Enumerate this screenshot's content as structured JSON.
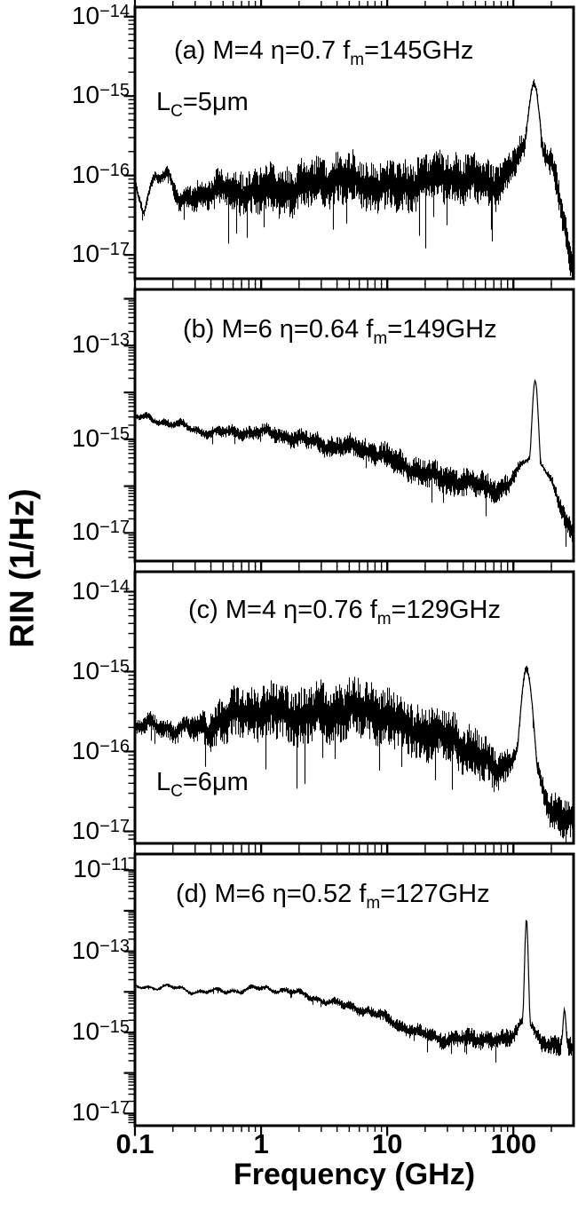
{
  "figure": {
    "ylabel": "RIN (1/Hz)",
    "xlabel": "Frequency (GHz)",
    "xlim_GHz": [
      0.1,
      300
    ],
    "xtick_values_GHz": [
      0.1,
      1,
      10,
      100
    ],
    "xtick_labels": [
      "0.1",
      "1",
      "10",
      "100"
    ],
    "axis_color": "#000000",
    "trace_color": "#000000",
    "background_color": "#ffffff"
  },
  "chart_data": [
    {
      "id": "a",
      "type": "line",
      "label": "(a) M=4 η=0.7 fm=145GHz",
      "label_segments": [
        {
          "t": "(a) M=4 "
        },
        {
          "t": "η=0.7 "
        },
        {
          "t": "f"
        },
        {
          "t": "m",
          "sub": true
        },
        {
          "t": "=145GHz"
        }
      ],
      "extra_label": "LC=5μm",
      "extra_label_segments": [
        {
          "t": "L"
        },
        {
          "t": "C",
          "sub": true
        },
        {
          "t": "=5μm"
        }
      ],
      "M": 4,
      "eta": 0.7,
      "f_m_GHz": 145,
      "L_C_um": 5,
      "ylim_log10": [
        -17.3,
        -13.88
      ],
      "ytick_label_exponents": [
        -14,
        -15,
        -16,
        -17
      ],
      "baseline_log10_points": [
        [
          -1,
          -16.2
        ],
        [
          -0.93,
          -16.5
        ],
        [
          -0.84,
          -15.95
        ],
        [
          -0.74,
          -15.9
        ],
        [
          -0.64,
          -16.35
        ],
        [
          -0.5,
          -16.2
        ],
        [
          -0.2,
          -16.25
        ],
        [
          0.1,
          -16.15
        ],
        [
          0.5,
          -16.1
        ],
        [
          1.0,
          -16.1
        ],
        [
          1.5,
          -16.05
        ],
        [
          1.9,
          -16.1
        ],
        [
          2.05,
          -16.1
        ],
        [
          2.3,
          -16.2
        ],
        [
          2.42,
          -16.8
        ],
        [
          2.477,
          -17.4
        ]
      ],
      "noise_halfwidth_log10_points": [
        [
          -1,
          0.06
        ],
        [
          -0.75,
          0.08
        ],
        [
          -0.55,
          0.18
        ],
        [
          -0.2,
          0.3
        ],
        [
          0.5,
          0.33
        ],
        [
          1.5,
          0.33
        ],
        [
          2.0,
          0.3
        ],
        [
          2.477,
          0.25
        ]
      ],
      "peaks": [
        {
          "f_GHz": 145,
          "top_log10": -14.8,
          "sigma_logf": 0.05
        },
        {
          "f_GHz": 145,
          "top_log10": -15.6,
          "sigma_logf": 0.13
        }
      ],
      "seed": 101
    },
    {
      "id": "b",
      "type": "line",
      "label": "(b) M=6 η=0.64 fm=149GHz",
      "label_segments": [
        {
          "t": "(b) M=6 "
        },
        {
          "t": "η=0.64 "
        },
        {
          "t": "f"
        },
        {
          "t": "m",
          "sub": true
        },
        {
          "t": "=149GHz"
        }
      ],
      "M": 6,
      "eta": 0.64,
      "f_m_GHz": 149,
      "ylim_log10": [
        -17.6,
        -11.8
      ],
      "ytick_label_exponents": [
        -13,
        -15,
        -17
      ],
      "baseline_log10_points": [
        [
          -1,
          -14.55
        ],
        [
          -0.7,
          -14.7
        ],
        [
          -0.4,
          -14.8
        ],
        [
          0,
          -14.9
        ],
        [
          0.4,
          -15.0
        ],
        [
          0.8,
          -15.25
        ],
        [
          1.2,
          -15.6
        ],
        [
          1.6,
          -15.95
        ],
        [
          1.9,
          -16.15
        ],
        [
          2.05,
          -16.2
        ],
        [
          2.3,
          -16.45
        ],
        [
          2.477,
          -17.1
        ]
      ],
      "noise_halfwidth_log10_points": [
        [
          -1,
          0.07
        ],
        [
          -0.5,
          0.1
        ],
        [
          0,
          0.16
        ],
        [
          0.5,
          0.22
        ],
        [
          1.0,
          0.28
        ],
        [
          1.5,
          0.32
        ],
        [
          2.0,
          0.3
        ],
        [
          2.477,
          0.28
        ]
      ],
      "peaks": [
        {
          "f_GHz": 149,
          "top_log10": -13.7,
          "sigma_logf": 0.03
        },
        {
          "f_GHz": 149,
          "top_log10": -15.3,
          "sigma_logf": 0.12
        }
      ],
      "seed": 202
    },
    {
      "id": "c",
      "type": "line",
      "label": "(c) M=4 η=0.76 fm=129GHz",
      "label_segments": [
        {
          "t": "(c) M=4 "
        },
        {
          "t": "η=0.76 "
        },
        {
          "t": "f"
        },
        {
          "t": "m",
          "sub": true
        },
        {
          "t": "=129GHz"
        }
      ],
      "extra_label": "LC=6μm",
      "extra_label_segments": [
        {
          "t": "L"
        },
        {
          "t": "C",
          "sub": true
        },
        {
          "t": "=6μm"
        }
      ],
      "M": 4,
      "eta": 0.76,
      "f_m_GHz": 129,
      "L_C_um": 6,
      "ylim_log10": [
        -17.15,
        -13.75
      ],
      "ytick_label_exponents": [
        -14,
        -15,
        -16,
        -17
      ],
      "baseline_log10_points": [
        [
          -1,
          -15.75
        ],
        [
          -0.7,
          -15.7
        ],
        [
          -0.4,
          -15.65
        ],
        [
          -0.1,
          -15.55
        ],
        [
          0.3,
          -15.5
        ],
        [
          0.7,
          -15.5
        ],
        [
          1.1,
          -15.6
        ],
        [
          1.5,
          -15.85
        ],
        [
          1.8,
          -16.2
        ],
        [
          2.0,
          -16.5
        ],
        [
          2.3,
          -16.95
        ],
        [
          2.477,
          -16.95
        ]
      ],
      "noise_halfwidth_log10_points": [
        [
          -1,
          0.1
        ],
        [
          -0.6,
          0.14
        ],
        [
          -0.3,
          0.3
        ],
        [
          0.2,
          0.37
        ],
        [
          1.0,
          0.37
        ],
        [
          1.6,
          0.33
        ],
        [
          2.05,
          0.28
        ],
        [
          2.477,
          0.3
        ]
      ],
      "peaks": [
        {
          "f_GHz": 129,
          "top_log10": -14.95,
          "sigma_logf": 0.055
        },
        {
          "f_GHz": 129,
          "top_log10": -15.9,
          "sigma_logf": 0.12
        }
      ],
      "seed": 303
    },
    {
      "id": "d",
      "type": "line",
      "label": "(d) M=6 η=0.52 fm=127GHz",
      "label_segments": [
        {
          "t": "(d) M=6 "
        },
        {
          "t": "η=0.52 "
        },
        {
          "t": "f"
        },
        {
          "t": "m",
          "sub": true
        },
        {
          "t": "=127GHz"
        }
      ],
      "M": 6,
      "eta": 0.52,
      "f_m_GHz": 127,
      "ylim_log10": [
        -17.3,
        -10.6
      ],
      "ytick_label_exponents": [
        -11,
        -13,
        -15,
        -17
      ],
      "baseline_log10_points": [
        [
          -1,
          -13.88
        ],
        [
          -0.6,
          -13.97
        ],
        [
          -0.2,
          -13.93
        ],
        [
          0.2,
          -14.0
        ],
        [
          0.5,
          -14.15
        ],
        [
          0.8,
          -14.45
        ],
        [
          1.1,
          -14.85
        ],
        [
          1.4,
          -15.1
        ],
        [
          1.7,
          -15.2
        ],
        [
          2.0,
          -15.25
        ],
        [
          2.25,
          -15.3
        ],
        [
          2.477,
          -15.35
        ]
      ],
      "noise_halfwidth_log10_points": [
        [
          -1,
          0.04
        ],
        [
          -0.5,
          0.05
        ],
        [
          0,
          0.06
        ],
        [
          0.5,
          0.09
        ],
        [
          1.0,
          0.15
        ],
        [
          1.5,
          0.22
        ],
        [
          2.0,
          0.24
        ],
        [
          2.477,
          0.26
        ]
      ],
      "peaks": [
        {
          "f_GHz": 127,
          "top_log10": -12.1,
          "sigma_logf": 0.016
        },
        {
          "f_GHz": 127,
          "top_log10": -14.6,
          "sigma_logf": 0.06
        },
        {
          "f_GHz": 254,
          "top_log10": -14.35,
          "sigma_logf": 0.012
        }
      ],
      "seed": 404
    }
  ]
}
